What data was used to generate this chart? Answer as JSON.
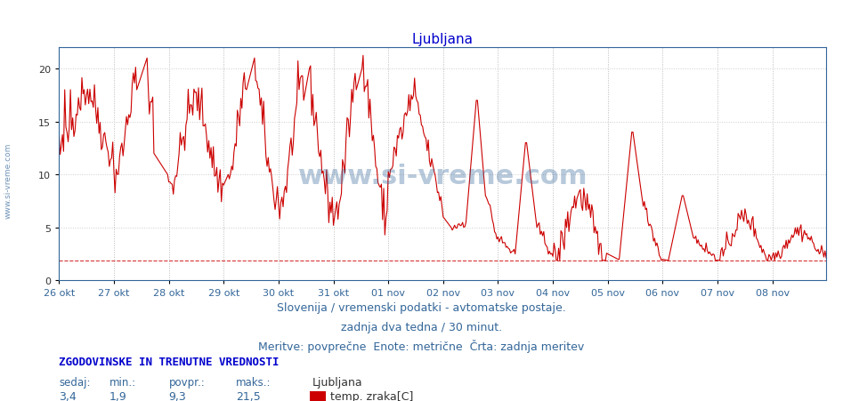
{
  "title": "Ljubljana",
  "title_color": "#0000cc",
  "title_fontsize": 11,
  "bg_color": "#ffffff",
  "plot_bg_color": "#ffffff",
  "line_color": "#cc0000",
  "dashed_line_color": "#cc0000",
  "dashed_line_value": 1.9,
  "grid_color": "#cccccc",
  "ylim": [
    0,
    22
  ],
  "yticks": [
    0,
    5,
    10,
    15,
    20
  ],
  "x_tick_labels": [
    "26 okt",
    "27 okt",
    "28 okt",
    "29 okt",
    "30 okt",
    "31 okt",
    "01 nov",
    "02 nov",
    "03 nov",
    "04 nov",
    "05 nov",
    "06 nov",
    "07 nov",
    "08 nov"
  ],
  "subtitle_lines": [
    "Slovenija / vremenski podatki - avtomatske postaje.",
    "zadnja dva tedna / 30 minut.",
    "Meritve: povprečne  Enote: metrične  Črta: zadnja meritev"
  ],
  "subtitle_color": "#336699",
  "subtitle_fontsize": 9,
  "stats_label": "ZGODOVINSKE IN TRENUTNE VREDNOSTI",
  "stats_color": "#0000cc",
  "stats_fontsize": 9,
  "stats_headers": [
    "sedaj:",
    "min.:",
    "povpr.:",
    "maks.:"
  ],
  "stats_values": [
    "3,4",
    "1,9",
    "9,3",
    "21,5"
  ],
  "legend_station": "Ljubljana",
  "legend_label": "temp. zraka[C]",
  "legend_color": "#cc0000",
  "watermark_text": "www.si-vreme.com",
  "left_text": "www.si-vreme.com",
  "spine_color": "#336699"
}
